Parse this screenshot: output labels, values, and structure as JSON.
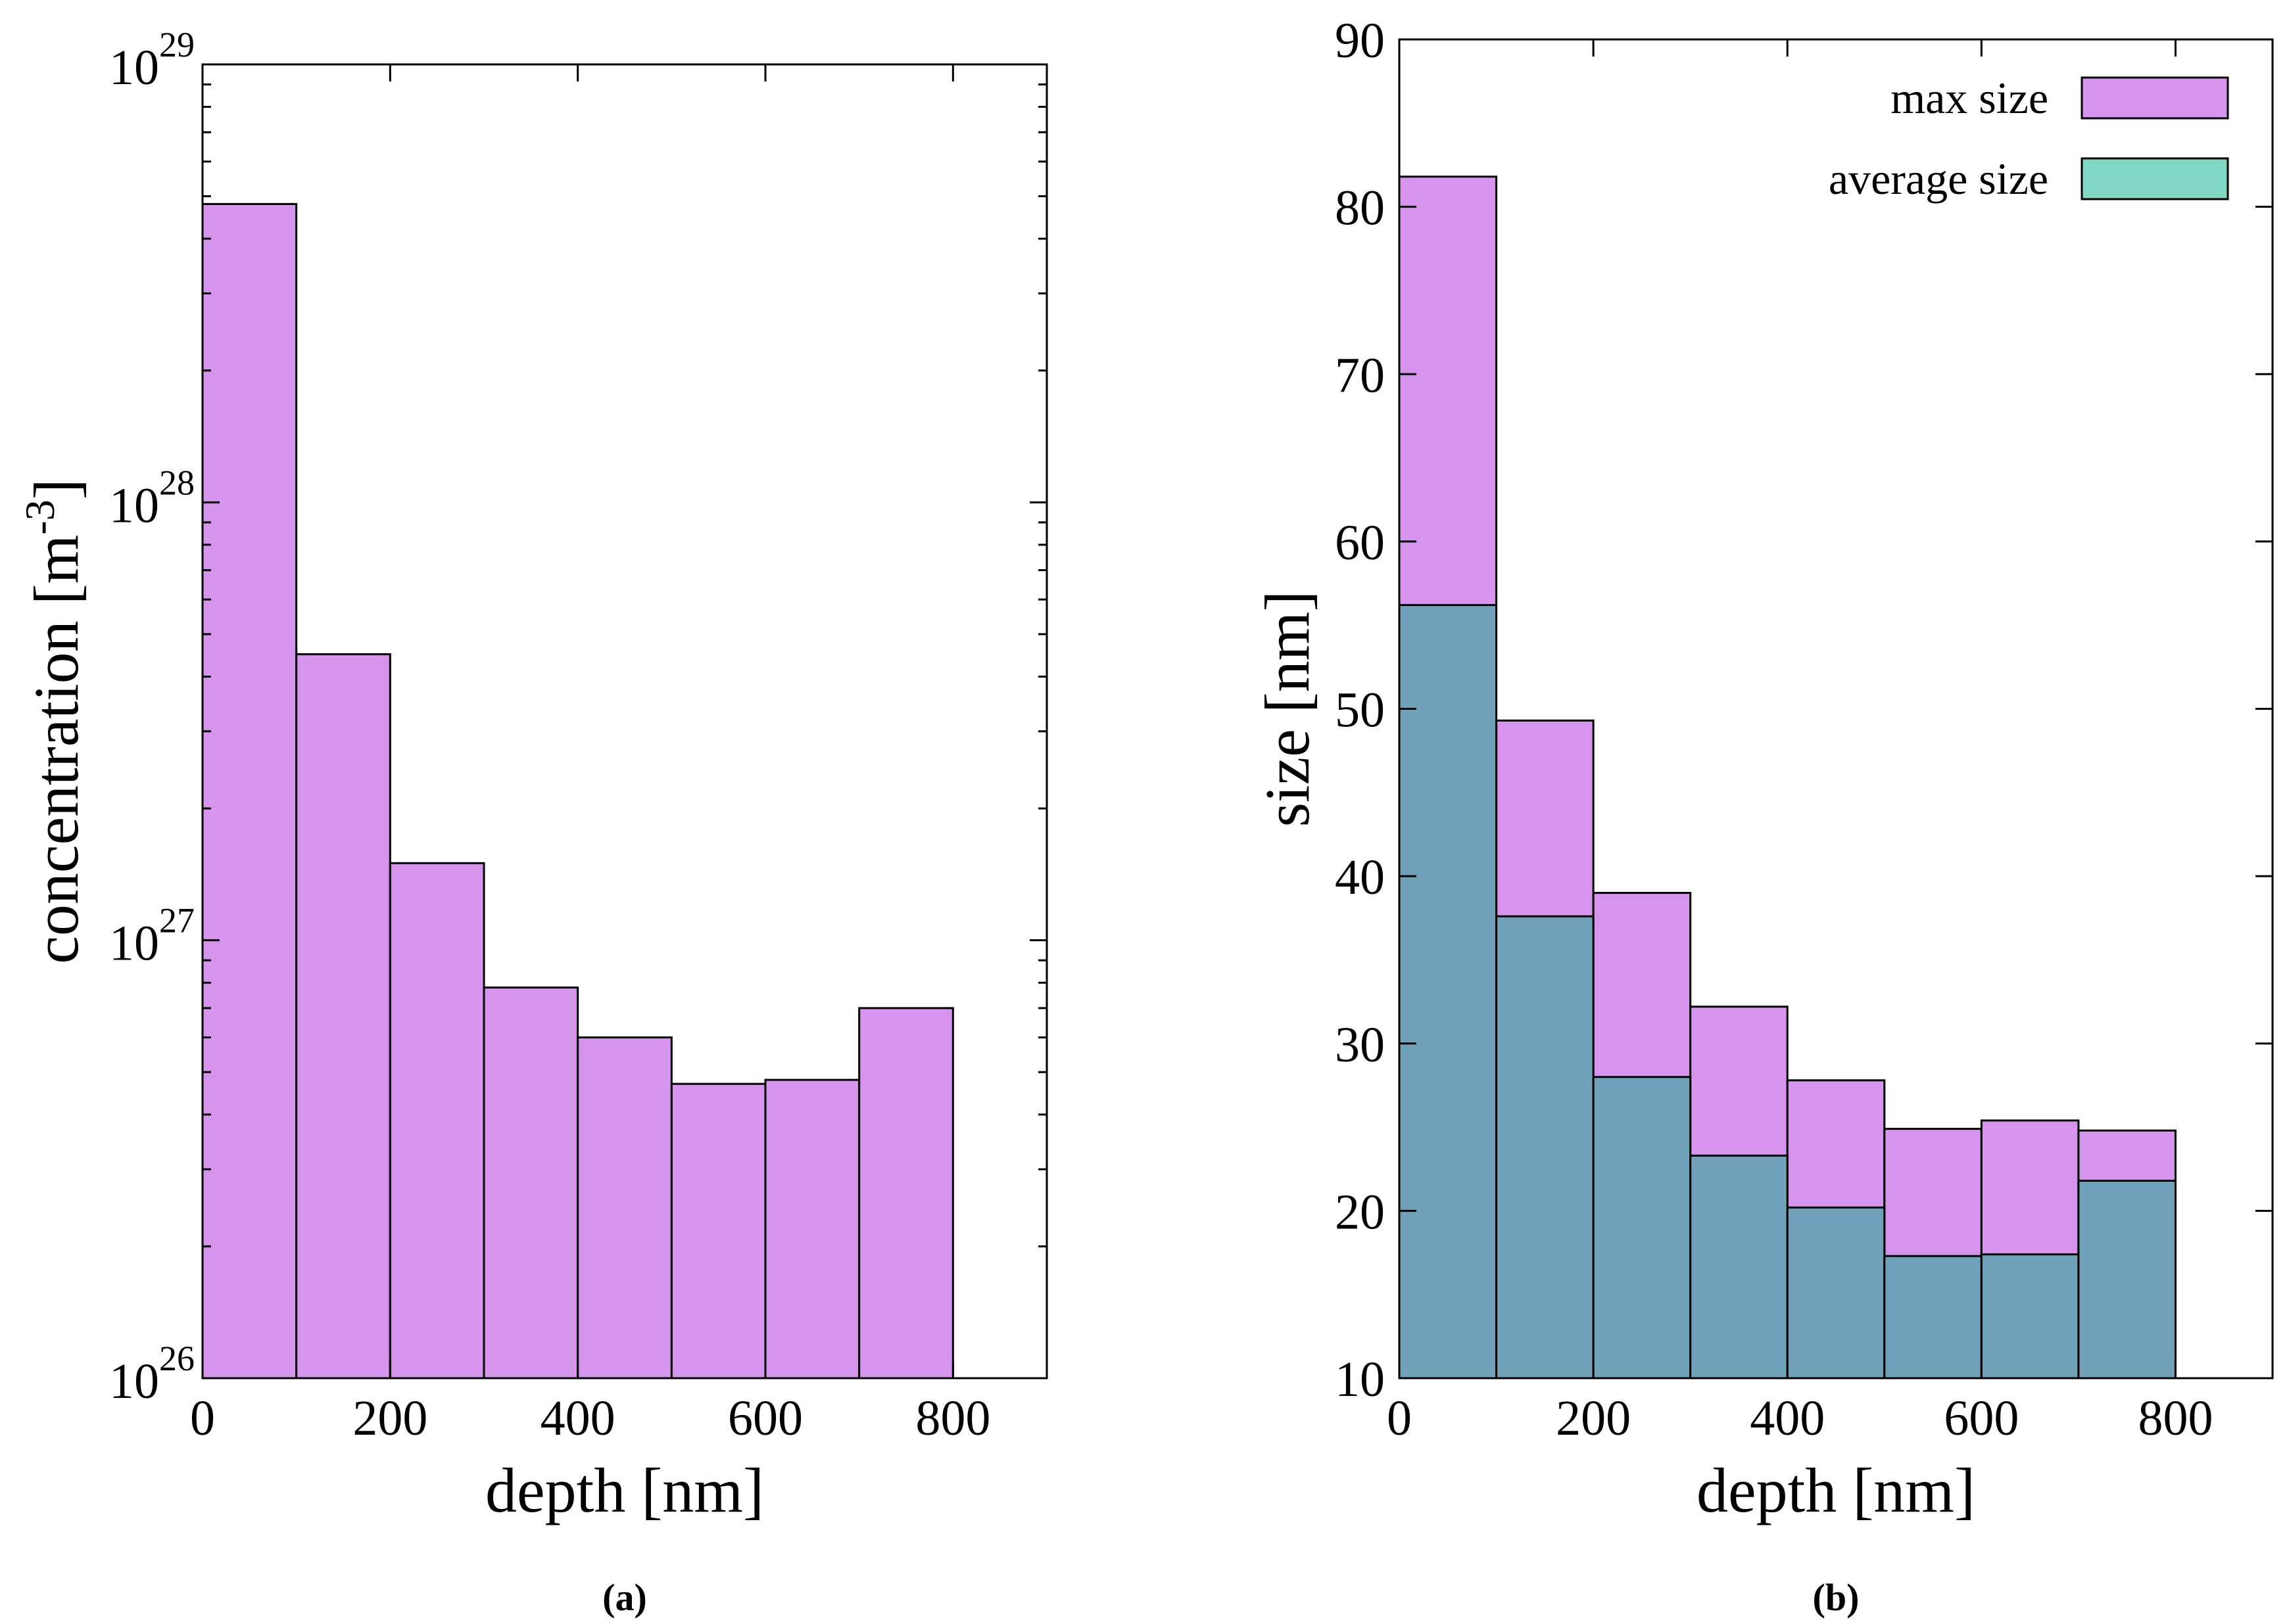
{
  "chart_data": [
    {
      "type": "bar",
      "panel": "(a)",
      "xlabel": "depth [nm]",
      "ylabel": "concentration [m-3]",
      "ylabel_parts": {
        "base": "concentration [m",
        "exponent": "-3",
        "suffix": "]"
      },
      "yscale": "log",
      "xlim": [
        0,
        900
      ],
      "ylim": [
        1e+26,
        1e+29
      ],
      "x_ticks": [
        0,
        200,
        400,
        600,
        800
      ],
      "x_tick_labels": [
        "0",
        "200",
        "400",
        "600",
        "800"
      ],
      "y_ticks": [
        {
          "value": 1e+26,
          "base": "10",
          "exponent": "26"
        },
        {
          "value": 1e+27,
          "base": "10",
          "exponent": "27"
        },
        {
          "value": 1e+28,
          "base": "10",
          "exponent": "28"
        },
        {
          "value": 1e+29,
          "base": "10",
          "exponent": "29"
        }
      ],
      "bin_edges": [
        0,
        100,
        200,
        300,
        400,
        500,
        600,
        700,
        800
      ],
      "series": [
        {
          "name": "concentration",
          "color": "#d694ec",
          "values": [
            4.8e+28,
            4.5e+27,
            1.5e+27,
            7.8e+26,
            6e+26,
            4.7e+26,
            4.8e+26,
            7e+26
          ]
        }
      ]
    },
    {
      "type": "bar",
      "panel": "(b)",
      "xlabel": "depth [nm]",
      "ylabel": "size [nm]",
      "yscale": "linear",
      "xlim": [
        0,
        900
      ],
      "ylim": [
        10,
        90
      ],
      "x_ticks": [
        0,
        200,
        400,
        600,
        800
      ],
      "x_tick_labels": [
        "0",
        "200",
        "400",
        "600",
        "800"
      ],
      "y_ticks": [
        10,
        20,
        30,
        40,
        50,
        60,
        70,
        80,
        90
      ],
      "y_tick_labels": [
        "10",
        "20",
        "30",
        "40",
        "50",
        "60",
        "70",
        "80",
        "90"
      ],
      "bin_edges": [
        0,
        100,
        200,
        300,
        400,
        500,
        600,
        700,
        800
      ],
      "legend_position": "top-right",
      "series": [
        {
          "name": "max size",
          "color": "#d694ec",
          "values": [
            81.8,
            49.3,
            39.0,
            32.2,
            27.8,
            24.9,
            25.4,
            24.8
          ]
        },
        {
          "name": "average size",
          "color": "#80d7c3",
          "overlap_color": "#6fa1b9",
          "values": [
            56.2,
            37.6,
            28.0,
            23.3,
            20.2,
            17.3,
            17.4,
            21.8
          ]
        }
      ]
    }
  ]
}
